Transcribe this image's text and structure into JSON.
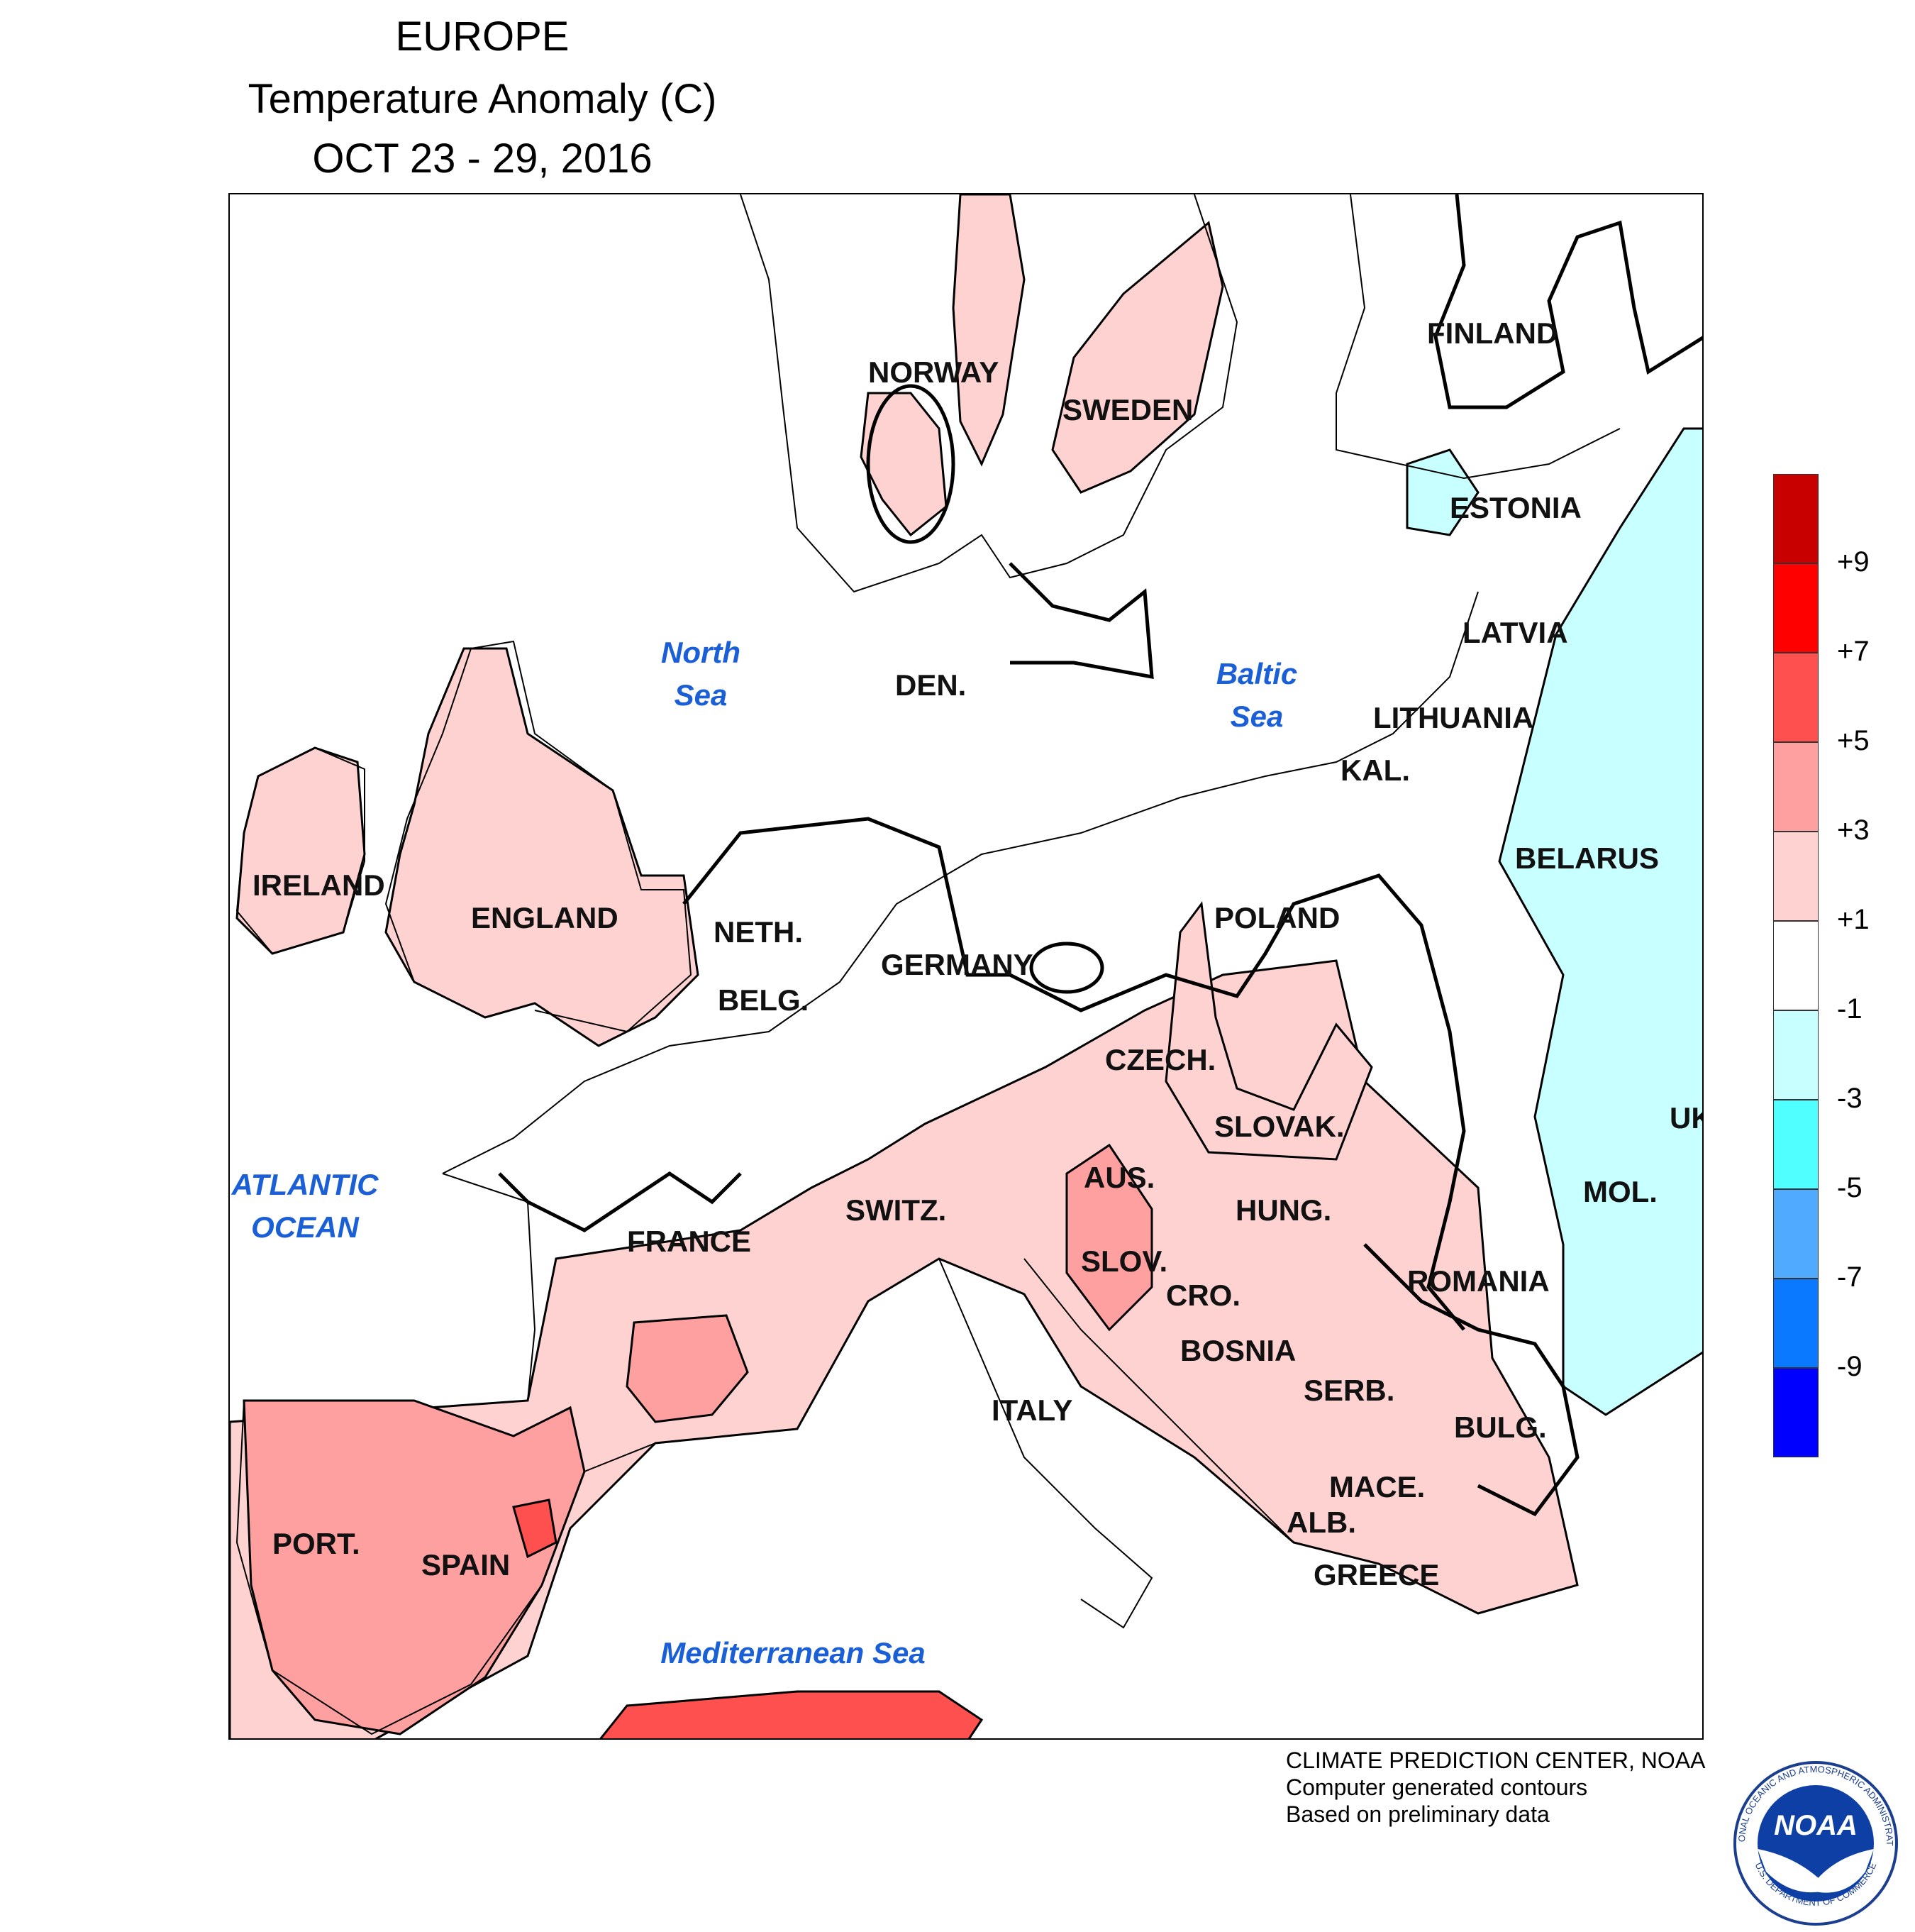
{
  "title": {
    "line1": "EUROPE",
    "line2": "Temperature Anomaly (C)",
    "line3": "OCT 23 - 29, 2016"
  },
  "countries": {
    "norway": "NORWAY",
    "sweden": "SWEDEN",
    "finland": "FINLAND",
    "estonia": "ESTONIA",
    "latvia": "LATVIA",
    "lithuania": "LITHUANIA",
    "kal": "KAL.",
    "belarus": "BELARUS",
    "ireland": "IRELAND",
    "england": "ENGLAND",
    "den": "DEN.",
    "neth": "NETH.",
    "belg": "BELG.",
    "germany": "GERMANY",
    "poland": "POLAND",
    "czech": "CZECH.",
    "slovak": "SLOVAK.",
    "uk": "UK",
    "aus": "AUS.",
    "hung": "HUNG.",
    "mol": "MOL.",
    "switz": "SWITZ.",
    "france": "FRANCE",
    "slov": "SLOV.",
    "cro": "CRO.",
    "romania": "ROMANIA",
    "bosnia": "BOSNIA",
    "serb": "SERB.",
    "italy": "ITALY",
    "bulg": "BULG.",
    "mace": "MACE.",
    "alb": "ALB.",
    "greece": "GREECE",
    "port": "PORT.",
    "spain": "SPAIN"
  },
  "water": {
    "north_sea": [
      "North",
      "Sea"
    ],
    "baltic_sea": [
      "Baltic",
      "Sea"
    ],
    "atlantic": [
      "ATLANTIC",
      "OCEAN"
    ],
    "mediterranean": "Mediterranean Sea"
  },
  "legend": {
    "colors": [
      "#c80000",
      "#ff0000",
      "#ff5050",
      "#ffa0a0",
      "#ffd2d2",
      "#ffffff",
      "#c8ffff",
      "#50ffff",
      "#50aaff",
      "#0a78ff",
      "#0000ff"
    ],
    "ticks": [
      "+9",
      "+7",
      "+5",
      "+3",
      "+1",
      "-1",
      "-3",
      "-5",
      "-7",
      "-9"
    ]
  },
  "credits": {
    "line1": "CLIMATE PREDICTION CENTER, NOAA",
    "line2": "Computer generated contours",
    "line3": "Based on preliminary data"
  },
  "logo": {
    "text": "NOAA",
    "ring_top": "NATIONAL OCEANIC AND ATMOSPHERIC ADMINISTRATION",
    "ring_bottom": "U.S. DEPARTMENT OF COMMERCE"
  }
}
